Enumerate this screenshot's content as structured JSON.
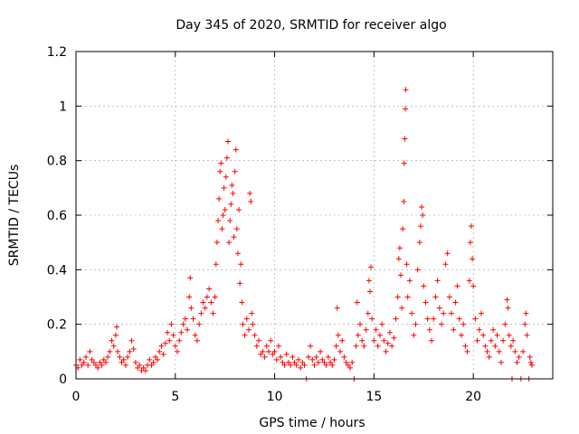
{
  "chart_data": {
    "type": "scatter",
    "title": "Day 345 of 2020, SRMTID for receiver algo",
    "xlabel": "GPS time / hours",
    "ylabel": "SRMTID / TECUs",
    "xlim": [
      0,
      24
    ],
    "ylim": [
      0,
      1.2
    ],
    "xticks": [
      0,
      5,
      10,
      15,
      20
    ],
    "xtick_labels": [
      "0",
      "5",
      "10",
      "15",
      "20"
    ],
    "yticks": [
      0,
      0.2,
      0.4,
      0.6,
      0.8,
      1.0,
      1.2
    ],
    "ytick_labels": [
      "0",
      "0.2",
      "0.4",
      "0.6",
      "0.8",
      "1",
      "1.2"
    ],
    "grid": true,
    "marker": "+",
    "color": "#ff0000",
    "series": [
      {
        "name": "SRMTID",
        "points": [
          [
            0.0,
            0.05
          ],
          [
            0.1,
            0.04
          ],
          [
            0.2,
            0.07
          ],
          [
            0.3,
            0.05
          ],
          [
            0.4,
            0.06
          ],
          [
            0.5,
            0.08
          ],
          [
            0.6,
            0.05
          ],
          [
            0.7,
            0.1
          ],
          [
            0.8,
            0.07
          ],
          [
            0.9,
            0.06
          ],
          [
            1.0,
            0.05
          ],
          [
            1.1,
            0.04
          ],
          [
            1.2,
            0.06
          ],
          [
            1.3,
            0.05
          ],
          [
            1.4,
            0.07
          ],
          [
            1.5,
            0.06
          ],
          [
            1.6,
            0.08
          ],
          [
            1.7,
            0.1
          ],
          [
            1.8,
            0.14
          ],
          [
            1.9,
            0.12
          ],
          [
            2.0,
            0.16
          ],
          [
            2.05,
            0.19
          ],
          [
            2.1,
            0.1
          ],
          [
            2.2,
            0.08
          ],
          [
            2.3,
            0.06
          ],
          [
            2.4,
            0.07
          ],
          [
            2.5,
            0.05
          ],
          [
            2.6,
            0.08
          ],
          [
            2.7,
            0.1
          ],
          [
            2.8,
            0.14
          ],
          [
            2.9,
            0.11
          ],
          [
            3.0,
            0.06
          ],
          [
            3.1,
            0.04
          ],
          [
            3.2,
            0.05
          ],
          [
            3.3,
            0.03
          ],
          [
            3.4,
            0.04
          ],
          [
            3.5,
            0.03
          ],
          [
            3.6,
            0.05
          ],
          [
            3.7,
            0.07
          ],
          [
            3.8,
            0.05
          ],
          [
            3.9,
            0.06
          ],
          [
            4.0,
            0.08
          ],
          [
            4.1,
            0.07
          ],
          [
            4.2,
            0.1
          ],
          [
            4.3,
            0.12
          ],
          [
            4.4,
            0.09
          ],
          [
            4.5,
            0.13
          ],
          [
            4.6,
            0.17
          ],
          [
            4.7,
            0.14
          ],
          [
            4.8,
            0.2
          ],
          [
            4.9,
            0.16
          ],
          [
            5.0,
            0.12
          ],
          [
            5.1,
            0.1
          ],
          [
            5.2,
            0.14
          ],
          [
            5.3,
            0.17
          ],
          [
            5.4,
            0.2
          ],
          [
            5.5,
            0.22
          ],
          [
            5.6,
            0.18
          ],
          [
            5.7,
            0.3
          ],
          [
            5.75,
            0.37
          ],
          [
            5.8,
            0.26
          ],
          [
            5.9,
            0.22
          ],
          [
            6.0,
            0.16
          ],
          [
            6.1,
            0.14
          ],
          [
            6.2,
            0.2
          ],
          [
            6.3,
            0.24
          ],
          [
            6.4,
            0.28
          ],
          [
            6.5,
            0.26
          ],
          [
            6.6,
            0.3
          ],
          [
            6.7,
            0.33
          ],
          [
            6.8,
            0.28
          ],
          [
            6.9,
            0.24
          ],
          [
            7.0,
            0.3
          ],
          [
            7.05,
            0.42
          ],
          [
            7.1,
            0.5
          ],
          [
            7.15,
            0.58
          ],
          [
            7.2,
            0.66
          ],
          [
            7.25,
            0.76
          ],
          [
            7.3,
            0.79
          ],
          [
            7.35,
            0.55
          ],
          [
            7.4,
            0.6
          ],
          [
            7.45,
            0.7
          ],
          [
            7.5,
            0.62
          ],
          [
            7.55,
            0.74
          ],
          [
            7.6,
            0.81
          ],
          [
            7.65,
            0.87
          ],
          [
            7.7,
            0.5
          ],
          [
            7.75,
            0.58
          ],
          [
            7.8,
            0.64
          ],
          [
            7.85,
            0.71
          ],
          [
            7.9,
            0.68
          ],
          [
            7.95,
            0.52
          ],
          [
            8.0,
            0.76
          ],
          [
            8.05,
            0.84
          ],
          [
            8.1,
            0.55
          ],
          [
            8.15,
            0.46
          ],
          [
            8.2,
            0.62
          ],
          [
            8.25,
            0.35
          ],
          [
            8.3,
            0.42
          ],
          [
            8.35,
            0.28
          ],
          [
            8.4,
            0.2
          ],
          [
            8.5,
            0.16
          ],
          [
            8.6,
            0.22
          ],
          [
            8.7,
            0.18
          ],
          [
            8.75,
            0.68
          ],
          [
            8.8,
            0.65
          ],
          [
            8.85,
            0.24
          ],
          [
            8.9,
            0.2
          ],
          [
            9.0,
            0.16
          ],
          [
            9.1,
            0.12
          ],
          [
            9.2,
            0.14
          ],
          [
            9.3,
            0.09
          ],
          [
            9.4,
            0.1
          ],
          [
            9.5,
            0.08
          ],
          [
            9.6,
            0.12
          ],
          [
            9.7,
            0.1
          ],
          [
            9.8,
            0.14
          ],
          [
            9.9,
            0.09
          ],
          [
            10.0,
            0.1
          ],
          [
            10.1,
            0.07
          ],
          [
            10.2,
            0.12
          ],
          [
            10.3,
            0.08
          ],
          [
            10.4,
            0.06
          ],
          [
            10.5,
            0.05
          ],
          [
            10.6,
            0.09
          ],
          [
            10.7,
            0.06
          ],
          [
            10.8,
            0.05
          ],
          [
            10.9,
            0.08
          ],
          [
            11.0,
            0.06
          ],
          [
            11.1,
            0.05
          ],
          [
            11.2,
            0.07
          ],
          [
            11.3,
            0.04
          ],
          [
            11.4,
            0.06
          ],
          [
            11.5,
            0.05
          ],
          [
            11.6,
            0.0
          ],
          [
            11.7,
            0.08
          ],
          [
            11.8,
            0.12
          ],
          [
            11.9,
            0.07
          ],
          [
            12.0,
            0.05
          ],
          [
            12.1,
            0.08
          ],
          [
            12.2,
            0.06
          ],
          [
            12.3,
            0.1
          ],
          [
            12.4,
            0.07
          ],
          [
            12.5,
            0.06
          ],
          [
            12.6,
            0.05
          ],
          [
            12.7,
            0.08
          ],
          [
            12.8,
            0.06
          ],
          [
            12.9,
            0.05
          ],
          [
            13.0,
            0.07
          ],
          [
            13.1,
            0.12
          ],
          [
            13.15,
            0.26
          ],
          [
            13.2,
            0.16
          ],
          [
            13.3,
            0.1
          ],
          [
            13.4,
            0.14
          ],
          [
            13.5,
            0.08
          ],
          [
            13.6,
            0.06
          ],
          [
            13.7,
            0.05
          ],
          [
            13.8,
            0.04
          ],
          [
            13.9,
            0.06
          ],
          [
            14.0,
            0.0
          ],
          [
            14.1,
            0.12
          ],
          [
            14.15,
            0.28
          ],
          [
            14.2,
            0.16
          ],
          [
            14.3,
            0.2
          ],
          [
            14.4,
            0.14
          ],
          [
            14.5,
            0.12
          ],
          [
            14.6,
            0.18
          ],
          [
            14.7,
            0.24
          ],
          [
            14.75,
            0.36
          ],
          [
            14.8,
            0.32
          ],
          [
            14.85,
            0.41
          ],
          [
            14.9,
            0.22
          ],
          [
            15.0,
            0.14
          ],
          [
            15.1,
            0.18
          ],
          [
            15.2,
            0.12
          ],
          [
            15.3,
            0.16
          ],
          [
            15.4,
            0.2
          ],
          [
            15.5,
            0.14
          ],
          [
            15.6,
            0.1
          ],
          [
            15.7,
            0.13
          ],
          [
            15.8,
            0.17
          ],
          [
            15.9,
            0.12
          ],
          [
            16.0,
            0.15
          ],
          [
            16.1,
            0.22
          ],
          [
            16.2,
            0.3
          ],
          [
            16.25,
            0.44
          ],
          [
            16.3,
            0.48
          ],
          [
            16.35,
            0.38
          ],
          [
            16.4,
            0.26
          ],
          [
            16.45,
            0.55
          ],
          [
            16.5,
            0.65
          ],
          [
            16.52,
            0.79
          ],
          [
            16.55,
            0.88
          ],
          [
            16.58,
            0.99
          ],
          [
            16.6,
            1.06
          ],
          [
            16.65,
            0.42
          ],
          [
            16.7,
            0.3
          ],
          [
            16.8,
            0.36
          ],
          [
            16.9,
            0.24
          ],
          [
            17.0,
            0.16
          ],
          [
            17.1,
            0.2
          ],
          [
            17.2,
            0.4
          ],
          [
            17.3,
            0.5
          ],
          [
            17.35,
            0.56
          ],
          [
            17.4,
            0.63
          ],
          [
            17.45,
            0.6
          ],
          [
            17.5,
            0.34
          ],
          [
            17.6,
            0.28
          ],
          [
            17.7,
            0.22
          ],
          [
            17.8,
            0.18
          ],
          [
            17.9,
            0.14
          ],
          [
            18.0,
            0.22
          ],
          [
            18.1,
            0.3
          ],
          [
            18.2,
            0.36
          ],
          [
            18.3,
            0.26
          ],
          [
            18.4,
            0.2
          ],
          [
            18.5,
            0.24
          ],
          [
            18.6,
            0.42
          ],
          [
            18.7,
            0.46
          ],
          [
            18.8,
            0.3
          ],
          [
            18.9,
            0.24
          ],
          [
            19.0,
            0.18
          ],
          [
            19.1,
            0.28
          ],
          [
            19.2,
            0.34
          ],
          [
            19.3,
            0.22
          ],
          [
            19.4,
            0.16
          ],
          [
            19.5,
            0.2
          ],
          [
            19.6,
            0.12
          ],
          [
            19.7,
            0.1
          ],
          [
            19.8,
            0.36
          ],
          [
            19.85,
            0.5
          ],
          [
            19.9,
            0.56
          ],
          [
            19.95,
            0.44
          ],
          [
            20.0,
            0.34
          ],
          [
            20.1,
            0.22
          ],
          [
            20.2,
            0.14
          ],
          [
            20.3,
            0.18
          ],
          [
            20.4,
            0.24
          ],
          [
            20.5,
            0.16
          ],
          [
            20.6,
            0.12
          ],
          [
            20.7,
            0.1
          ],
          [
            20.8,
            0.08
          ],
          [
            20.9,
            0.14
          ],
          [
            21.0,
            0.18
          ],
          [
            21.1,
            0.12
          ],
          [
            21.2,
            0.16
          ],
          [
            21.3,
            0.1
          ],
          [
            21.4,
            0.06
          ],
          [
            21.5,
            0.14
          ],
          [
            21.6,
            0.2
          ],
          [
            21.7,
            0.29
          ],
          [
            21.75,
            0.26
          ],
          [
            21.8,
            0.16
          ],
          [
            21.9,
            0.12
          ],
          [
            21.95,
            0.0
          ],
          [
            22.0,
            0.14
          ],
          [
            22.1,
            0.1
          ],
          [
            22.2,
            0.06
          ],
          [
            22.3,
            0.08
          ],
          [
            22.4,
            0.0
          ],
          [
            22.5,
            0.1
          ],
          [
            22.6,
            0.2
          ],
          [
            22.65,
            0.24
          ],
          [
            22.7,
            0.16
          ],
          [
            22.8,
            0.0
          ],
          [
            22.85,
            0.08
          ],
          [
            22.9,
            0.06
          ],
          [
            22.95,
            0.05
          ]
        ]
      }
    ]
  }
}
